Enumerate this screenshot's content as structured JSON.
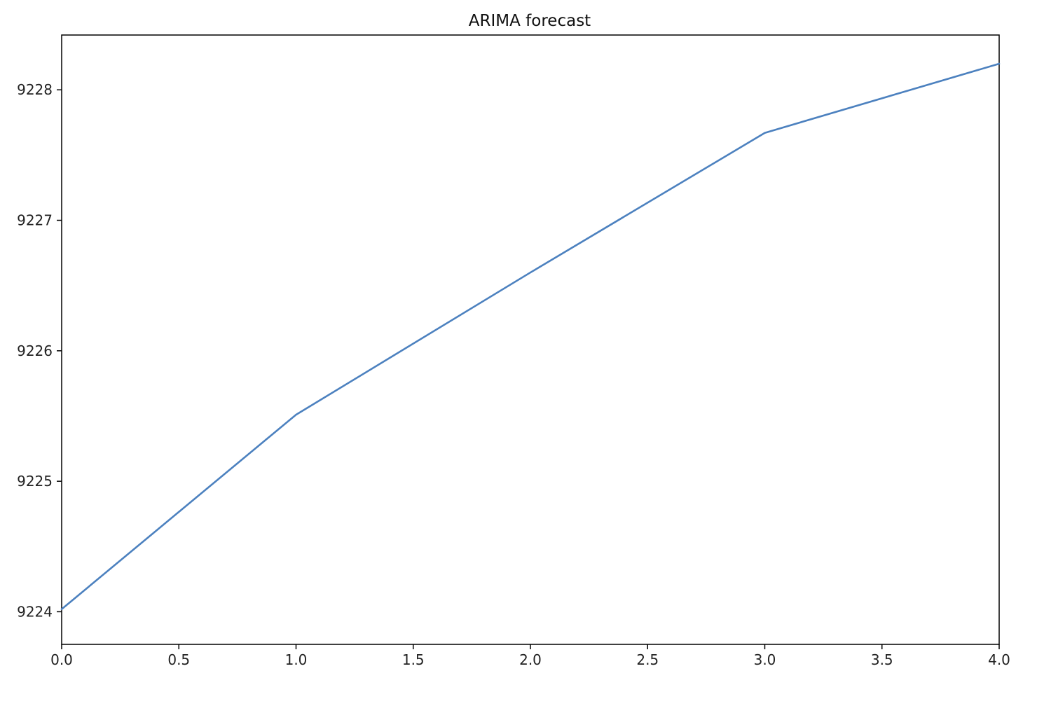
{
  "chart_data": {
    "type": "line",
    "title": "ARIMA forecast",
    "xlabel": "",
    "ylabel": "",
    "xlim": [
      0.0,
      4.0
    ],
    "ylim": [
      9223.75,
      9228.42
    ],
    "x_ticks": [
      0.0,
      0.5,
      1.0,
      1.5,
      2.0,
      2.5,
      3.0,
      3.5,
      4.0
    ],
    "x_tick_labels": [
      "0.0",
      "0.5",
      "1.0",
      "1.5",
      "2.0",
      "2.5",
      "3.0",
      "3.5",
      "4.0"
    ],
    "y_ticks": [
      9224,
      9225,
      9226,
      9227,
      9228
    ],
    "y_tick_labels": [
      "9224",
      "9225",
      "9226",
      "9227",
      "9228"
    ],
    "grid": false,
    "legend": "none",
    "series": [
      {
        "color": "#4c81bf",
        "x": [
          0,
          1,
          2,
          3,
          4
        ],
        "y": [
          9224.02,
          9225.51,
          9226.6,
          9227.67,
          9228.2
        ]
      }
    ]
  }
}
